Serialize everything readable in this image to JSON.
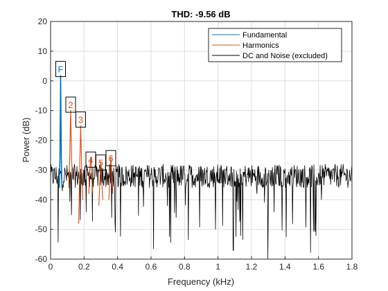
{
  "chart_data": {
    "type": "line",
    "title": "THD:  -9.56 dB",
    "xlabel": "Frequency (kHz)",
    "ylabel": "Power (dB)",
    "xlim": [
      0,
      1.8
    ],
    "ylim": [
      -60,
      20
    ],
    "x_ticks": [
      0,
      0.2,
      0.4,
      0.6,
      0.8,
      1,
      1.2,
      1.4,
      1.6,
      1.8
    ],
    "x_tick_labels": [
      "0",
      "0.2",
      "0.4",
      "0.6",
      "0.8",
      "1",
      "1.2",
      "1.4",
      "1.6",
      "1.8"
    ],
    "y_ticks": [
      -60,
      -50,
      -40,
      -30,
      -20,
      -10,
      0,
      10,
      20
    ],
    "y_tick_labels": [
      "-60",
      "-50",
      "-40",
      "-30",
      "-20",
      "-10",
      "0",
      "10",
      "20"
    ],
    "grid": true,
    "legend_position": "top-right",
    "series": [
      {
        "name": "Fundamental",
        "color": "#0072BD",
        "x": [
          0.052,
          0.056,
          0.06,
          0.064,
          0.068
        ],
        "y": [
          -36,
          -26,
          2.0,
          -26,
          -36
        ]
      },
      {
        "name": "Harmonics",
        "color": "#D95319",
        "peaks": [
          {
            "x": [
              0.108,
              0.114,
              0.12,
              0.126,
              0.132
            ],
            "y": [
              -36,
              -27,
              -9.8,
              -27,
              -33
            ]
          },
          {
            "x": [
              0.168,
              0.174,
              0.18,
              0.186,
              0.192
            ],
            "y": [
              -48,
              -30,
              -15,
              -30,
              -40
            ]
          },
          {
            "x": [
              0.228,
              0.234,
              0.24,
              0.246,
              0.252
            ],
            "y": [
              -38,
              -30,
              -25.5,
              -32,
              -38
            ]
          },
          {
            "x": [
              0.288,
              0.294,
              0.3,
              0.306,
              0.312
            ],
            "y": [
              -42,
              -34,
              -27,
              -34,
              -40
            ]
          },
          {
            "x": [
              0.348,
              0.354,
              0.36,
              0.366,
              0.372
            ],
            "y": [
              -40,
              -32,
              -25.5,
              -32,
              -38
            ]
          }
        ]
      },
      {
        "name": "DC and Noise (excluded)",
        "color": "#000000",
        "noise_level_db": -32,
        "noise_floor_db": -60,
        "noise_ceiling_db": -23
      }
    ],
    "annotations": [
      {
        "label": "F",
        "x": 0.06,
        "y": 4.0,
        "color": "#0072BD"
      },
      {
        "label": "2",
        "x": 0.12,
        "y": -8.0,
        "color": "#D95319"
      },
      {
        "label": "3",
        "x": 0.18,
        "y": -13.0,
        "color": "#D95319"
      },
      {
        "label": "4",
        "x": 0.24,
        "y": -26.5,
        "color": "#D95319"
      },
      {
        "label": "5",
        "x": 0.3,
        "y": -27.5,
        "color": "#D95319"
      },
      {
        "label": "6",
        "x": 0.36,
        "y": -26.0,
        "color": "#D95319"
      }
    ]
  }
}
